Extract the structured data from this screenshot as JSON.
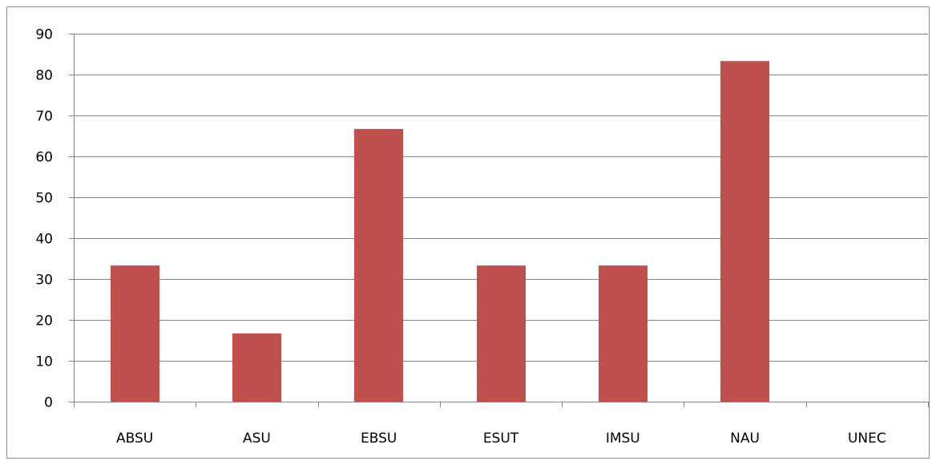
{
  "chart_data": {
    "type": "bar",
    "title": "",
    "xlabel": "",
    "ylabel": "",
    "categories": [
      "ABSU",
      "ASU",
      "EBSU",
      "ESUT",
      "IMSU",
      "NAU",
      "UNEC"
    ],
    "values": [
      33.3,
      16.7,
      66.7,
      33.3,
      33.3,
      83.3,
      0
    ],
    "ylim": [
      0,
      90
    ],
    "yticks": [
      0,
      10,
      20,
      30,
      40,
      50,
      60,
      70,
      80,
      90
    ],
    "ytick_labels": [
      "0",
      "10",
      "20",
      "30",
      "40",
      "50",
      "60",
      "70",
      "80",
      "90"
    ],
    "grid": true,
    "legend": "none",
    "bar_color": "#c0504d",
    "grid_color": "#868686"
  }
}
